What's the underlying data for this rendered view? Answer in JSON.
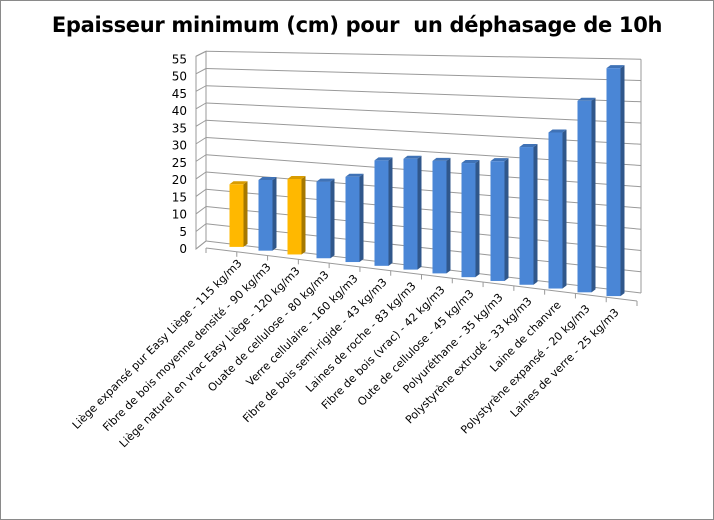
{
  "chart_data": {
    "type": "bar",
    "style": "3d-perspective",
    "title": "Epaisseur minimum (cm) pour  un déphasage de 10h",
    "xlabel": "",
    "ylabel": "",
    "ylim": [
      0,
      55
    ],
    "yticks": [
      0,
      5,
      10,
      15,
      20,
      25,
      30,
      35,
      40,
      45,
      50,
      55
    ],
    "grid": true,
    "legend": "none",
    "categories": [
      "Liège expansé pur Easy Liège - 115 kg/m3",
      "Fibre de bois moyenne densité - 90 kg/m3",
      "Liège naturel en vrac Easy Liège - 120 kg/m3",
      "Ouate de cellulose - 80 kg/m3",
      "Verre cellulaire - 160 kg/m3",
      "Fibre de bois semi-rigide - 43 kg/m3",
      "Laines de roche - 83 kg/m3",
      "Fibre de bois (vrac) - 42 kg/m3",
      "Oute de cellulose - 45 kg/m3",
      "Polyuréthane - 35 kg/m3",
      "Polystyrène extrudé - 33 kg/m3",
      "Laine de chanvre",
      "Polystyrène expansé - 20 kg/m3",
      "Laines de verre - 25 kg/m3"
    ],
    "values": [
      18,
      20,
      21,
      21,
      23,
      28,
      29,
      29,
      29,
      30,
      34,
      38,
      46,
      54
    ],
    "bar_colors": [
      "#FFB800",
      "#4A86D6",
      "#FFB800",
      "#4A86D6",
      "#4A86D6",
      "#4A86D6",
      "#4A86D6",
      "#4A86D6",
      "#4A86D6",
      "#4A86D6",
      "#4A86D6",
      "#4A86D6",
      "#4A86D6",
      "#4A86D6"
    ],
    "colors": {
      "highlight": "#FFB800",
      "default": "#4A86D6"
    }
  }
}
